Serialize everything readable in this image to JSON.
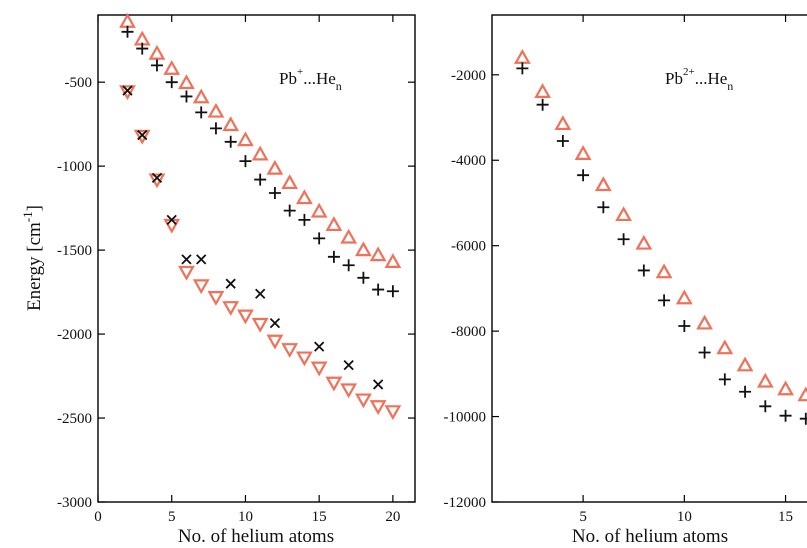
{
  "chart_data": [
    {
      "type": "scatter",
      "panel_label": {
        "main": "Pb",
        "sup": "+",
        "mid": "...He",
        "sub": "n"
      },
      "xlabel": "No. of helium atoms",
      "ylabel": {
        "main": "Energy [cm",
        "sup": "-1",
        "close": "]"
      },
      "xlim": [
        0,
        21.5
      ],
      "ylim": [
        -3000,
        -100
      ],
      "xticks": [
        0,
        5,
        10,
        15,
        20
      ],
      "yticks": [
        -3000,
        -2500,
        -2000,
        -1500,
        -1000,
        -500
      ],
      "grid": false,
      "legend": "none",
      "series": [
        {
          "marker": "triangle-up",
          "color": "#f07058",
          "x": [
            2,
            3,
            4,
            5,
            6,
            7,
            8,
            9,
            10,
            11,
            12,
            13,
            14,
            15,
            16,
            17,
            18,
            19,
            20
          ],
          "y": [
            -140,
            -245,
            -330,
            -420,
            -505,
            -590,
            -675,
            -755,
            -845,
            -930,
            -1015,
            -1100,
            -1190,
            -1270,
            -1350,
            -1425,
            -1500,
            -1530,
            -1570
          ]
        },
        {
          "marker": "plus",
          "color": "#111111",
          "x": [
            2,
            3,
            4,
            5,
            6,
            7,
            8,
            9,
            10,
            11,
            12,
            13,
            14,
            15,
            16,
            17,
            18,
            19,
            20
          ],
          "y": [
            -200,
            -300,
            -400,
            -500,
            -585,
            -680,
            -775,
            -855,
            -970,
            -1080,
            -1160,
            -1265,
            -1320,
            -1430,
            -1540,
            -1590,
            -1665,
            -1735,
            -1745
          ]
        },
        {
          "marker": "triangle-down",
          "color": "#f07058",
          "x": [
            2,
            3,
            4,
            5,
            6,
            7,
            8,
            9,
            10,
            11,
            12,
            13,
            14,
            15,
            16,
            17,
            18,
            19,
            20
          ],
          "y": [
            -555,
            -820,
            -1080,
            -1350,
            -1630,
            -1710,
            -1780,
            -1840,
            -1890,
            -1940,
            -2040,
            -2090,
            -2140,
            -2200,
            -2290,
            -2330,
            -2390,
            -2430,
            -2460
          ]
        },
        {
          "marker": "cross",
          "color": "#111111",
          "x": [
            2,
            3,
            4,
            5,
            6,
            7,
            9,
            11,
            12,
            15,
            17,
            19
          ],
          "y": [
            -550,
            -815,
            -1070,
            -1320,
            -1555,
            -1555,
            -1700,
            -1760,
            -1935,
            -2075,
            -2185,
            -2300
          ]
        }
      ]
    },
    {
      "type": "scatter",
      "panel_label": {
        "main": "Pb",
        "sup": "2+",
        "mid": "...He",
        "sub": "n"
      },
      "xlabel": "No. of helium atoms",
      "xlim": [
        0.5,
        16.8
      ],
      "ylim": [
        -12000,
        -600
      ],
      "xticks": [
        5,
        10,
        15
      ],
      "yticks": [
        -12000,
        -10000,
        -8000,
        -6000,
        -4000,
        -2000
      ],
      "grid": false,
      "legend": "none",
      "series": [
        {
          "marker": "triangle-up",
          "color": "#f07058",
          "x": [
            2,
            3,
            4,
            5,
            6,
            7,
            8,
            9,
            10,
            11,
            12,
            13,
            14,
            15,
            16
          ],
          "y": [
            -1600,
            -2400,
            -3150,
            -3850,
            -4580,
            -5280,
            -5950,
            -6620,
            -7230,
            -7820,
            -8400,
            -8800,
            -9180,
            -9360,
            -9500
          ]
        },
        {
          "marker": "plus",
          "color": "#111111",
          "x": [
            2,
            3,
            4,
            5,
            6,
            7,
            8,
            9,
            10,
            11,
            12,
            13,
            14,
            15,
            16
          ],
          "y": [
            -1850,
            -2700,
            -3550,
            -4350,
            -5100,
            -5850,
            -6580,
            -7280,
            -7880,
            -8500,
            -9130,
            -9420,
            -9760,
            -9980,
            -10050
          ]
        }
      ]
    }
  ]
}
